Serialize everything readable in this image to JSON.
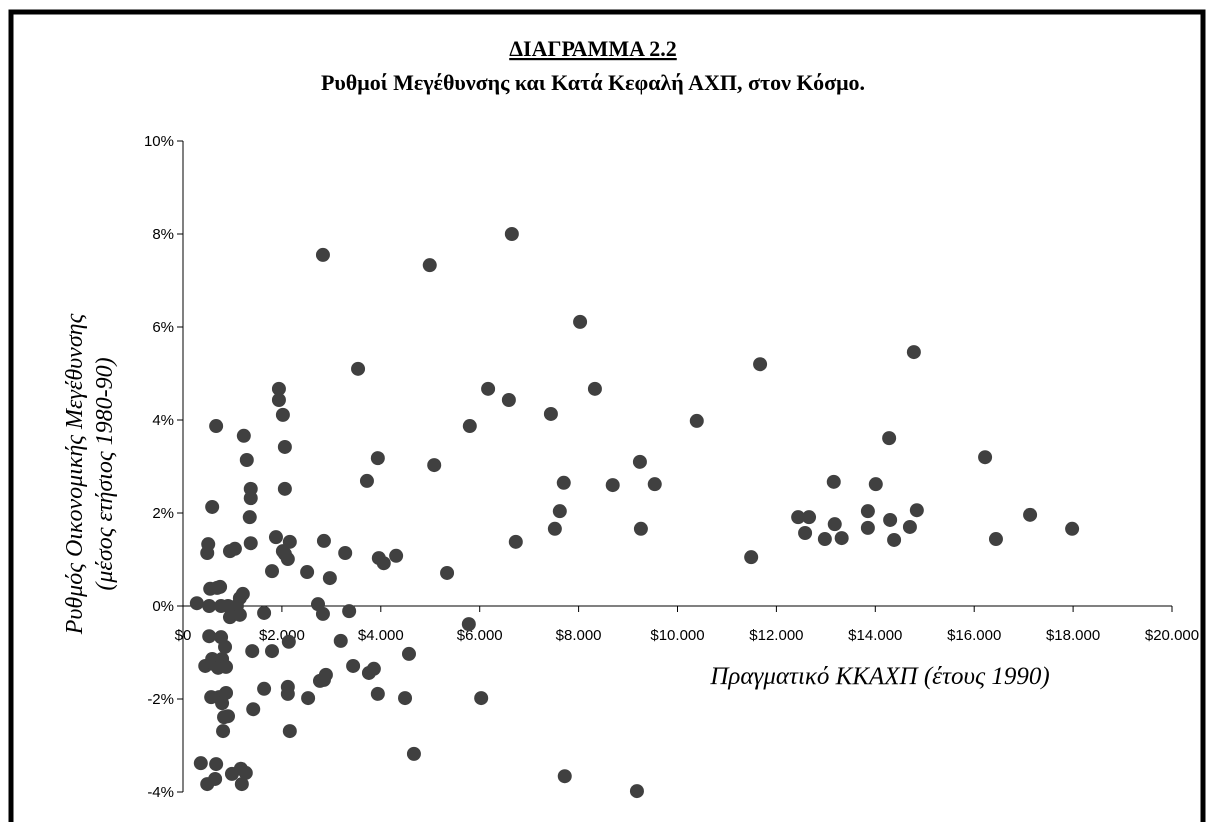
{
  "chart_data": {
    "type": "scatter",
    "title": "ΔΙΑΓΡΑΜΜΑ  2.2",
    "subtitle": "Ρυθμοί Μεγέθυνσης και Κατά Κεφαλή ΑΧΠ, στον Κόσμο.",
    "y_label": [
      "Ρυθμός Οικονομικής Μεγέθυνσης",
      "(μέσος ετήσιος 1980-90)"
    ],
    "x_label": "Πραγματικό ΚΚΑΧΠ (έτους 1990)",
    "color": "#404040",
    "xlim": [
      0,
      20000
    ],
    "ylim": [
      -4,
      10
    ],
    "xticks": [
      {
        "value": 0,
        "label": "$0"
      },
      {
        "value": 2000,
        "label": "$2.000"
      },
      {
        "value": 4000,
        "label": "$4.000"
      },
      {
        "value": 6000,
        "label": "$6.000"
      },
      {
        "value": 8000,
        "label": "$8.000"
      },
      {
        "value": 10000,
        "label": "$10.000"
      },
      {
        "value": 12000,
        "label": "$12.000"
      },
      {
        "value": 14000,
        "label": "$14.000"
      },
      {
        "value": 16000,
        "label": "$16.000"
      },
      {
        "value": 18000,
        "label": "$18.000"
      },
      {
        "value": 20000,
        "label": "$20.000"
      }
    ],
    "yticks": [
      {
        "value": -4,
        "label": "-4%"
      },
      {
        "value": -2,
        "label": "-2%"
      },
      {
        "value": 0,
        "label": "0%"
      },
      {
        "value": 2,
        "label": "2%"
      },
      {
        "value": 4,
        "label": "4%"
      },
      {
        "value": 6,
        "label": "6%"
      },
      {
        "value": 8,
        "label": "8%"
      },
      {
        "value": 10,
        "label": "10%"
      }
    ],
    "x": [
      280,
      360,
      450,
      490,
      490,
      510,
      530,
      530,
      550,
      570,
      590,
      590,
      630,
      650,
      670,
      670,
      690,
      710,
      730,
      750,
      770,
      770,
      790,
      790,
      810,
      830,
      850,
      870,
      870,
      910,
      910,
      950,
      950,
      990,
      1050,
      1090,
      1150,
      1150,
      1210,
      1170,
      1190,
      1230,
      1270,
      1290,
      1350,
      1370,
      1370,
      1370,
      1400,
      1420,
      1640,
      1640,
      1800,
      1800,
      1880,
      1940,
      1940,
      2020,
      2020,
      2060,
      2060,
      2060,
      2120,
      2120,
      2120,
      2140,
      2160,
      2160,
      2510,
      2530,
      2730,
      2770,
      2830,
      2830,
      2850,
      2850,
      2890,
      2970,
      3190,
      3280,
      3360,
      3440,
      3540,
      3720,
      3760,
      3860,
      3940,
      3940,
      3960,
      4060,
      4310,
      4490,
      4570,
      4670,
      4990,
      5080,
      5340,
      5780,
      5800,
      6030,
      6170,
      6590,
      6650,
      6730,
      7440,
      7520,
      7620,
      7700,
      7720,
      8030,
      8330,
      8690,
      9180,
      9240,
      9260,
      9540,
      10390,
      11490,
      11670,
      12440,
      12580,
      12660,
      12980,
      13160,
      13180,
      13320,
      13850,
      13850,
      14010,
      14280,
      14300,
      14380,
      14700,
      14780,
      14840,
      16220,
      16440,
      17130,
      17980
    ],
    "values": [
      0.06,
      -3.38,
      -1.29,
      -3.83,
      1.14,
      1.33,
      -0.65,
      0,
      0.37,
      -1.96,
      2.13,
      -1.14,
      -1.25,
      -3.72,
      3.87,
      -3.4,
      0.39,
      -1.33,
      -1.96,
      0.41,
      -0.67,
      0,
      -2.09,
      -1.14,
      -2.69,
      -2.39,
      -0.88,
      -1.87,
      -1.31,
      -2.37,
      0,
      1.18,
      -0.24,
      -3.61,
      1.23,
      0,
      0.17,
      -0.19,
      0.26,
      -3.5,
      -3.83,
      3.66,
      -3.59,
      3.14,
      1.91,
      2.52,
      2.32,
      1.35,
      -0.97,
      -2.22,
      -0.15,
      -1.78,
      0.75,
      -0.97,
      1.48,
      4.67,
      4.43,
      4.11,
      1.18,
      2.52,
      3.42,
      1.12,
      1.01,
      -1.74,
      -1.89,
      -0.77,
      -2.69,
      1.38,
      0.73,
      -1.98,
      0.04,
      -1.61,
      -0.17,
      7.55,
      1.4,
      -1.59,
      -1.48,
      0.6,
      -0.75,
      1.14,
      -0.11,
      -1.29,
      5.1,
      2.69,
      -1.44,
      -1.35,
      3.18,
      -1.89,
      1.03,
      0.92,
      1.08,
      -1.98,
      -1.03,
      -3.18,
      7.33,
      3.03,
      0.71,
      -0.39,
      3.87,
      -1.98,
      4.67,
      4.43,
      8.0,
      1.38,
      4.13,
      1.66,
      2.04,
      2.65,
      -3.66,
      6.11,
      4.67,
      2.6,
      -3.98,
      3.1,
      1.66,
      2.62,
      3.98,
      1.05,
      5.2,
      1.91,
      1.57,
      1.91,
      1.44,
      2.67,
      1.76,
      1.46,
      2.04,
      1.68,
      2.62,
      3.61,
      1.85,
      1.42,
      1.7,
      5.46,
      2.06,
      3.2,
      1.44,
      1.96,
      1.66
    ]
  }
}
